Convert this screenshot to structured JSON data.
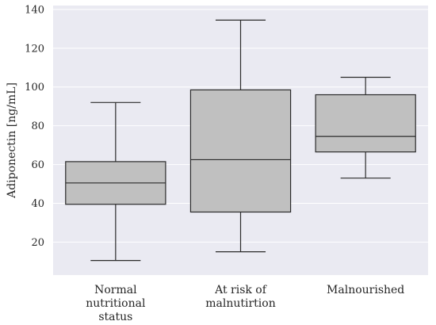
{
  "chart_data": {
    "type": "box",
    "title": "",
    "xlabel": "",
    "ylabel": "Adiponectin [ng/mL]",
    "ylim": [
      3,
      142
    ],
    "yticks": [
      20,
      40,
      60,
      80,
      100,
      120,
      140
    ],
    "grid": "horizontal",
    "plot_background": "#eaeaf2",
    "box_color": "#c0c0c0",
    "line_color": "#2b2b2b",
    "categories": [
      {
        "label_lines": [
          "Normal",
          "nutritional",
          "status"
        ]
      },
      {
        "label_lines": [
          "At risk of",
          "malnutirtion"
        ]
      },
      {
        "label_lines": [
          "Malnourished"
        ]
      }
    ],
    "boxes": [
      {
        "whisker_low": 10.5,
        "q1": 39.5,
        "median": 50.5,
        "q3": 61.5,
        "whisker_high": 92
      },
      {
        "whisker_low": 15,
        "q1": 35.5,
        "median": 62.5,
        "q3": 98.5,
        "whisker_high": 134.5
      },
      {
        "whisker_low": 53,
        "q1": 66.5,
        "median": 74.5,
        "q3": 96,
        "whisker_high": 105
      }
    ]
  }
}
